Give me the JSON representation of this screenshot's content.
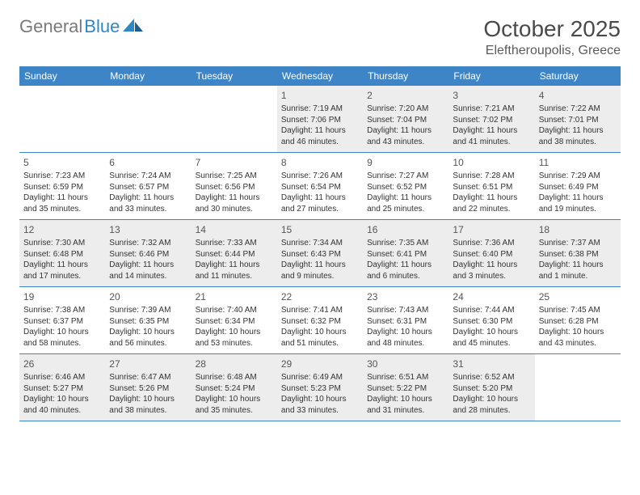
{
  "logo": {
    "text1": "General",
    "text2": "Blue"
  },
  "title": "October 2025",
  "location": "Eleftheroupolis, Greece",
  "colors": {
    "header_bg": "#3d85c6",
    "header_fg": "#ffffff",
    "shaded_bg": "#ededed",
    "border": "#3d85c6",
    "title_color": "#4a4a4a",
    "logo_gray": "#7a7a7a",
    "logo_blue": "#2f87c4"
  },
  "weekdays": [
    "Sunday",
    "Monday",
    "Tuesday",
    "Wednesday",
    "Thursday",
    "Friday",
    "Saturday"
  ],
  "weeks": [
    [
      {
        "n": "",
        "sr": "",
        "ss": "",
        "dl": "",
        "empty": true
      },
      {
        "n": "",
        "sr": "",
        "ss": "",
        "dl": "",
        "empty": true
      },
      {
        "n": "",
        "sr": "",
        "ss": "",
        "dl": "",
        "empty": true
      },
      {
        "n": "1",
        "sr": "Sunrise: 7:19 AM",
        "ss": "Sunset: 7:06 PM",
        "dl": "Daylight: 11 hours and 46 minutes."
      },
      {
        "n": "2",
        "sr": "Sunrise: 7:20 AM",
        "ss": "Sunset: 7:04 PM",
        "dl": "Daylight: 11 hours and 43 minutes."
      },
      {
        "n": "3",
        "sr": "Sunrise: 7:21 AM",
        "ss": "Sunset: 7:02 PM",
        "dl": "Daylight: 11 hours and 41 minutes."
      },
      {
        "n": "4",
        "sr": "Sunrise: 7:22 AM",
        "ss": "Sunset: 7:01 PM",
        "dl": "Daylight: 11 hours and 38 minutes."
      }
    ],
    [
      {
        "n": "5",
        "sr": "Sunrise: 7:23 AM",
        "ss": "Sunset: 6:59 PM",
        "dl": "Daylight: 11 hours and 35 minutes."
      },
      {
        "n": "6",
        "sr": "Sunrise: 7:24 AM",
        "ss": "Sunset: 6:57 PM",
        "dl": "Daylight: 11 hours and 33 minutes."
      },
      {
        "n": "7",
        "sr": "Sunrise: 7:25 AM",
        "ss": "Sunset: 6:56 PM",
        "dl": "Daylight: 11 hours and 30 minutes."
      },
      {
        "n": "8",
        "sr": "Sunrise: 7:26 AM",
        "ss": "Sunset: 6:54 PM",
        "dl": "Daylight: 11 hours and 27 minutes."
      },
      {
        "n": "9",
        "sr": "Sunrise: 7:27 AM",
        "ss": "Sunset: 6:52 PM",
        "dl": "Daylight: 11 hours and 25 minutes."
      },
      {
        "n": "10",
        "sr": "Sunrise: 7:28 AM",
        "ss": "Sunset: 6:51 PM",
        "dl": "Daylight: 11 hours and 22 minutes."
      },
      {
        "n": "11",
        "sr": "Sunrise: 7:29 AM",
        "ss": "Sunset: 6:49 PM",
        "dl": "Daylight: 11 hours and 19 minutes."
      }
    ],
    [
      {
        "n": "12",
        "sr": "Sunrise: 7:30 AM",
        "ss": "Sunset: 6:48 PM",
        "dl": "Daylight: 11 hours and 17 minutes."
      },
      {
        "n": "13",
        "sr": "Sunrise: 7:32 AM",
        "ss": "Sunset: 6:46 PM",
        "dl": "Daylight: 11 hours and 14 minutes."
      },
      {
        "n": "14",
        "sr": "Sunrise: 7:33 AM",
        "ss": "Sunset: 6:44 PM",
        "dl": "Daylight: 11 hours and 11 minutes."
      },
      {
        "n": "15",
        "sr": "Sunrise: 7:34 AM",
        "ss": "Sunset: 6:43 PM",
        "dl": "Daylight: 11 hours and 9 minutes."
      },
      {
        "n": "16",
        "sr": "Sunrise: 7:35 AM",
        "ss": "Sunset: 6:41 PM",
        "dl": "Daylight: 11 hours and 6 minutes."
      },
      {
        "n": "17",
        "sr": "Sunrise: 7:36 AM",
        "ss": "Sunset: 6:40 PM",
        "dl": "Daylight: 11 hours and 3 minutes."
      },
      {
        "n": "18",
        "sr": "Sunrise: 7:37 AM",
        "ss": "Sunset: 6:38 PM",
        "dl": "Daylight: 11 hours and 1 minute."
      }
    ],
    [
      {
        "n": "19",
        "sr": "Sunrise: 7:38 AM",
        "ss": "Sunset: 6:37 PM",
        "dl": "Daylight: 10 hours and 58 minutes."
      },
      {
        "n": "20",
        "sr": "Sunrise: 7:39 AM",
        "ss": "Sunset: 6:35 PM",
        "dl": "Daylight: 10 hours and 56 minutes."
      },
      {
        "n": "21",
        "sr": "Sunrise: 7:40 AM",
        "ss": "Sunset: 6:34 PM",
        "dl": "Daylight: 10 hours and 53 minutes."
      },
      {
        "n": "22",
        "sr": "Sunrise: 7:41 AM",
        "ss": "Sunset: 6:32 PM",
        "dl": "Daylight: 10 hours and 51 minutes."
      },
      {
        "n": "23",
        "sr": "Sunrise: 7:43 AM",
        "ss": "Sunset: 6:31 PM",
        "dl": "Daylight: 10 hours and 48 minutes."
      },
      {
        "n": "24",
        "sr": "Sunrise: 7:44 AM",
        "ss": "Sunset: 6:30 PM",
        "dl": "Daylight: 10 hours and 45 minutes."
      },
      {
        "n": "25",
        "sr": "Sunrise: 7:45 AM",
        "ss": "Sunset: 6:28 PM",
        "dl": "Daylight: 10 hours and 43 minutes."
      }
    ],
    [
      {
        "n": "26",
        "sr": "Sunrise: 6:46 AM",
        "ss": "Sunset: 5:27 PM",
        "dl": "Daylight: 10 hours and 40 minutes."
      },
      {
        "n": "27",
        "sr": "Sunrise: 6:47 AM",
        "ss": "Sunset: 5:26 PM",
        "dl": "Daylight: 10 hours and 38 minutes."
      },
      {
        "n": "28",
        "sr": "Sunrise: 6:48 AM",
        "ss": "Sunset: 5:24 PM",
        "dl": "Daylight: 10 hours and 35 minutes."
      },
      {
        "n": "29",
        "sr": "Sunrise: 6:49 AM",
        "ss": "Sunset: 5:23 PM",
        "dl": "Daylight: 10 hours and 33 minutes."
      },
      {
        "n": "30",
        "sr": "Sunrise: 6:51 AM",
        "ss": "Sunset: 5:22 PM",
        "dl": "Daylight: 10 hours and 31 minutes."
      },
      {
        "n": "31",
        "sr": "Sunrise: 6:52 AM",
        "ss": "Sunset: 5:20 PM",
        "dl": "Daylight: 10 hours and 28 minutes."
      },
      {
        "n": "",
        "sr": "",
        "ss": "",
        "dl": "",
        "empty": true
      }
    ]
  ]
}
